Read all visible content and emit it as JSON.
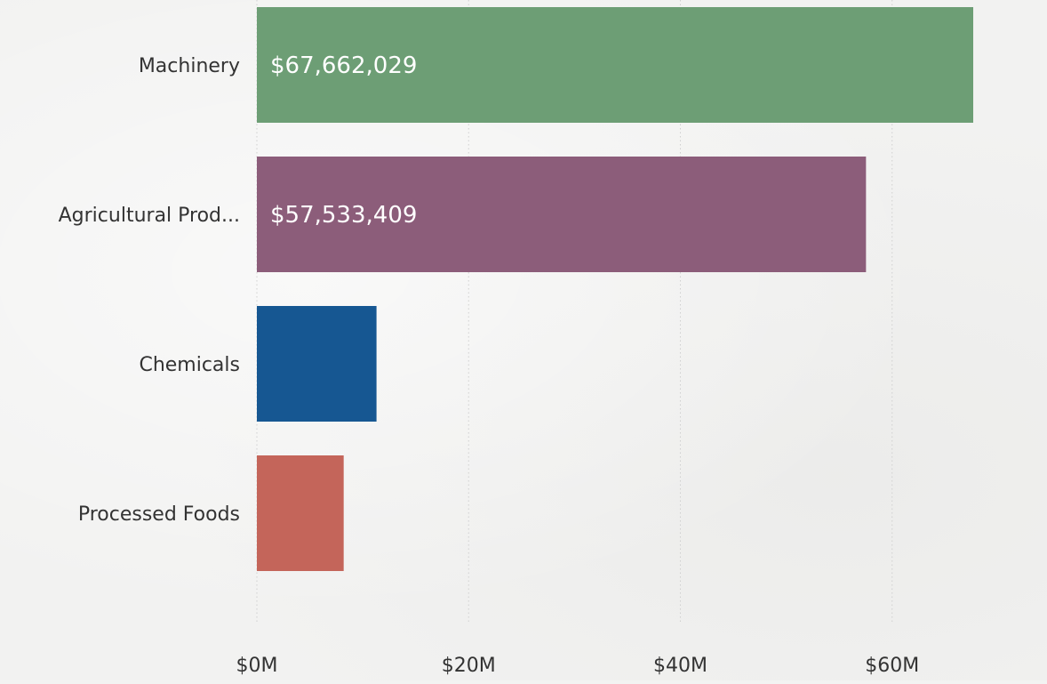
{
  "chart_data": {
    "type": "bar",
    "orientation": "horizontal",
    "categories": [
      "Machinery",
      "Agricultural Prod...",
      "Chemicals",
      "Processed Foods"
    ],
    "values": [
      67662029,
      57533409,
      11300000,
      8200000
    ],
    "data_labels": [
      "$67,662,029",
      "$57,533,409",
      "",
      ""
    ],
    "colors": [
      "#6d9e75",
      "#8c5d7a",
      "#165792",
      "#c4655a"
    ],
    "x_ticks": [
      {
        "value": 0,
        "label": "$0M"
      },
      {
        "value": 20000000,
        "label": "$20M"
      },
      {
        "value": 40000000,
        "label": "$40M"
      },
      {
        "value": 60000000,
        "label": "$60M"
      }
    ],
    "xlim": [
      0,
      67662029
    ],
    "grid": "vertical-dotted",
    "title": "",
    "xlabel": "",
    "ylabel": ""
  }
}
